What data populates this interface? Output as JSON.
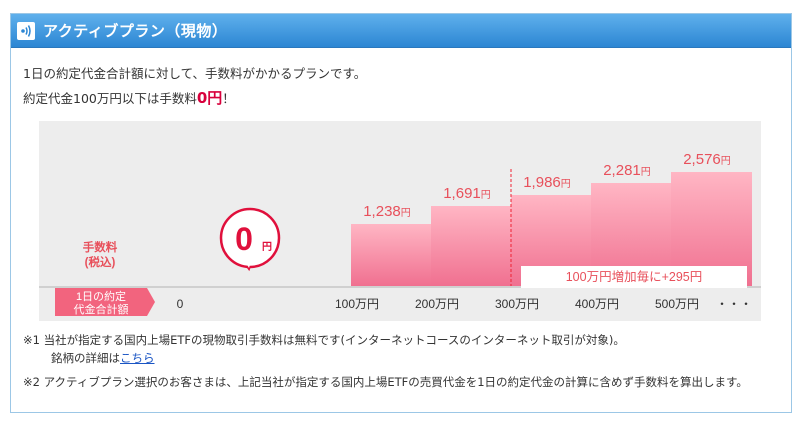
{
  "header": {
    "title": "アクティブプラン（現物）",
    "icon": "signal-icon"
  },
  "intro": {
    "line1": "1日の約定代金合計額に対して、手数料がかかるプランです。",
    "line2_prefix": "約定代金100万円以下は手数料",
    "line2_highlight": "0円",
    "line2_suffix": "！"
  },
  "chart_data": {
    "type": "bar",
    "ylabel": "手数料\n(税込)",
    "xlabel": "1日の約定\n代金合計額",
    "categories": [
      "100万円",
      "200万円",
      "300万円",
      "400万円",
      "500万円"
    ],
    "values": [
      1238,
      1691,
      1986,
      2281,
      2576
    ],
    "value_labels": [
      "1,238",
      "1,691",
      "1,986",
      "2,281",
      "2,576"
    ],
    "value_unit": "円",
    "zero_badge": {
      "number": "0",
      "unit": "円"
    },
    "origin_label": "0",
    "axis_trailer": "・・・",
    "increment_note": "100万円増加毎に+295円",
    "colors": {
      "bar_top": "#ffb6c4",
      "bar_bottom": "#f07090",
      "label": "#e8505b",
      "badge": "#e0103c",
      "label_box": "#f2647e"
    }
  },
  "notes": {
    "note1_line1": "※1  当社が指定する国内上場ETFの現物取引手数料は無料です(インターネットコースのインターネット取引が対象)。",
    "note1_line2_prefix": "銘柄の詳細は",
    "note1_link": "こちら",
    "note2": "※2  アクティブプラン選択のお客さまは、上記当社が指定する国内上場ETFの売買代金を1日の約定代金の計算に含めず手数料を算出します。"
  }
}
